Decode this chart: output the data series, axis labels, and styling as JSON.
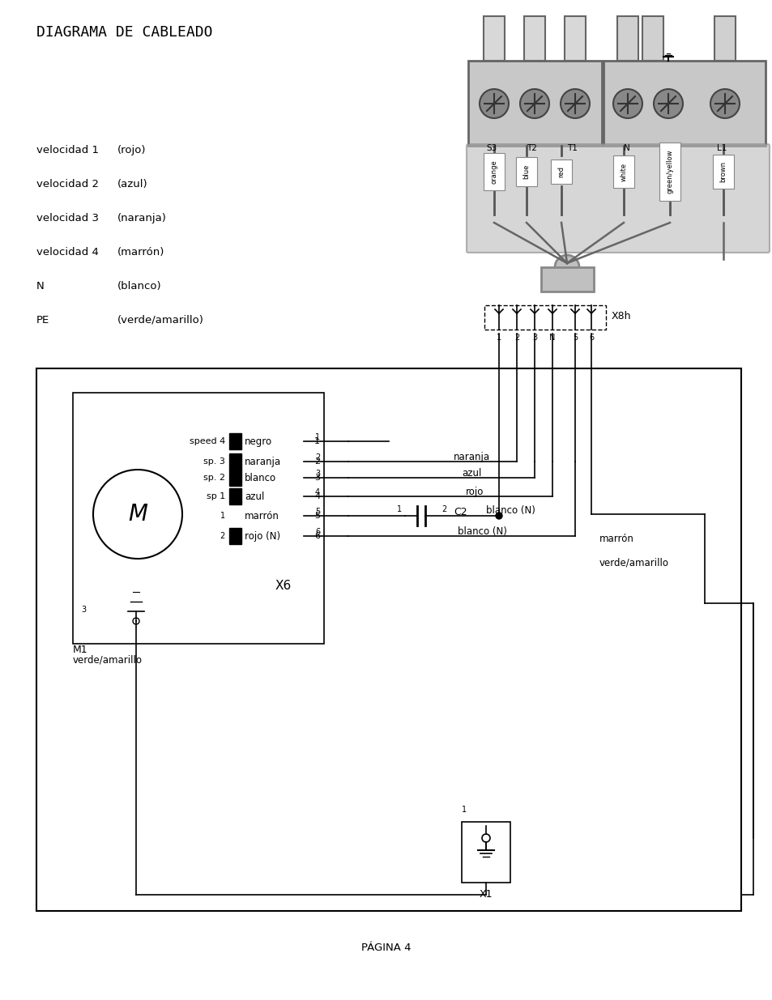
{
  "title": "DIAGRAMA DE CABLEADO",
  "page": "PÁGINA 4",
  "legend": [
    [
      "velocidad 1",
      "(rojo)"
    ],
    [
      "velocidad 2",
      "(azul)"
    ],
    [
      "velocidad 3",
      "(naranja)"
    ],
    [
      "velocidad 4",
      "(marrón)"
    ],
    [
      "N",
      "(blanco)"
    ],
    [
      "PE",
      "(verde/amarillo)"
    ]
  ],
  "connector_labels_top": [
    "S3",
    "T2",
    "T1",
    "N",
    "L1"
  ],
  "wire_labels_top": [
    "orange",
    "blue",
    "red",
    "white",
    "green/yellow",
    "brown"
  ],
  "x8h_pins": [
    "1",
    "2",
    "3",
    "N",
    "5",
    "6"
  ],
  "x6_pins_left": [
    "speed 4",
    "sp. 3",
    "sp. 2",
    "sp 1"
  ],
  "x6_wires_left": [
    "negro",
    "naranja",
    "blanco",
    "azul"
  ],
  "x6_pins_right": [
    "marrón",
    "rojo (N)"
  ],
  "x6_nums_right": [
    "1",
    "2",
    "3",
    "4",
    "5",
    "6"
  ],
  "right_labels": [
    "naranja",
    "azul",
    "rojo",
    "blanco (N)"
  ],
  "bg_color": "#ffffff",
  "line_color": "#000000",
  "gray_color": "#aaaaaa",
  "dark_gray": "#888888"
}
